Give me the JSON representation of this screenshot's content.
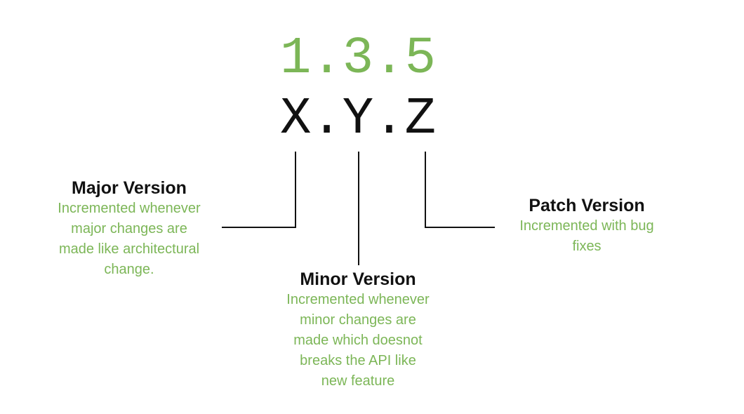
{
  "header": {
    "version_number": "1.3.5",
    "version_pattern": "X.Y.Z"
  },
  "parts": {
    "major": {
      "title": "Major Version",
      "description": "Incremented whenever\nmajor changes are\nmade like architectural\nchange."
    },
    "minor": {
      "title": "Minor Version",
      "description": "Incremented whenever\nminor changes are\nmade which doesnot\nbreaks the API like\nnew feature"
    },
    "patch": {
      "title": "Patch Version",
      "description": "Incremented with bug\nfixes"
    }
  },
  "colors": {
    "accent": "#7cb657",
    "text": "#111111",
    "line": "#111111"
  }
}
